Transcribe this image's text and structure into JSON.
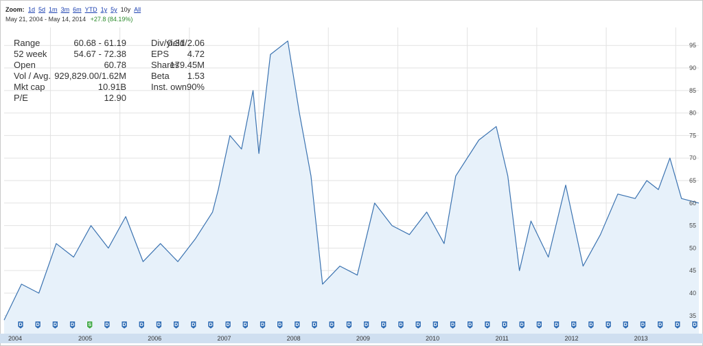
{
  "toolbar": {
    "zoom_label": "Zoom:",
    "zoom_options": [
      "1d",
      "5d",
      "1m",
      "3m",
      "6m",
      "YTD",
      "1y",
      "5y",
      "10y",
      "All"
    ],
    "active_zoom": "10y"
  },
  "range_display": {
    "dates": "May 21, 2004  -  May 14, 2014",
    "change": "+27.8 (84.19%)",
    "change_color": "#2a8a2a"
  },
  "stats": {
    "left": [
      {
        "label": "Range",
        "value": "60.68 - 61.19"
      },
      {
        "label": "52 week",
        "value": "54.67 - 72.38"
      },
      {
        "label": "Open",
        "value": "60.78"
      },
      {
        "label": "Vol / Avg.",
        "value": "929,829.00/1.62M"
      },
      {
        "label": "Mkt cap",
        "value": "10.91B"
      },
      {
        "label": "P/E",
        "value": "12.90"
      }
    ],
    "right": [
      {
        "label": "Div/yield",
        "value": "0.31/2.06"
      },
      {
        "label": "EPS",
        "value": "4.72"
      },
      {
        "label": "Shares",
        "value": "179.45M"
      },
      {
        "label": "Beta",
        "value": "1.53"
      },
      {
        "label": "Inst. own",
        "value": "90%"
      }
    ]
  },
  "colors": {
    "line": "#3a72b0",
    "fill": "#e7f1fa",
    "grid": "#e2e2e2",
    "axis_bar": "#cfdff0",
    "marker_fill": "#2f6db5",
    "split_marker_fill": "#3ea845"
  },
  "chart_data": {
    "type": "area",
    "ylim": [
      31,
      99
    ],
    "y_ticks": [
      35,
      40,
      45,
      50,
      55,
      60,
      65,
      70,
      75,
      80,
      85,
      90,
      95
    ],
    "x_tick_labels": [
      "2004",
      "2005",
      "2006",
      "2007",
      "2008",
      "2009",
      "2010",
      "2011",
      "2012",
      "2013"
    ],
    "x": [
      "2004-05",
      "2004-08",
      "2004-11",
      "2005-02",
      "2005-05",
      "2005-08",
      "2005-11",
      "2006-02",
      "2006-05",
      "2006-08",
      "2006-11",
      "2007-02",
      "2007-05",
      "2007-06",
      "2007-08",
      "2007-10",
      "2007-12",
      "2008-01",
      "2008-03",
      "2008-06",
      "2008-08",
      "2008-10",
      "2008-12",
      "2009-03",
      "2009-06",
      "2009-09",
      "2009-12",
      "2010-03",
      "2010-06",
      "2010-09",
      "2010-11",
      "2011-03",
      "2011-06",
      "2011-08",
      "2011-10",
      "2011-12",
      "2012-03",
      "2012-06",
      "2012-09",
      "2012-12",
      "2013-03",
      "2013-06",
      "2013-08",
      "2013-10",
      "2013-12",
      "2014-02",
      "2014-05"
    ],
    "series": [
      {
        "values": [
          34,
          42,
          40,
          51,
          48,
          55,
          50,
          57,
          47,
          51,
          47,
          52,
          58,
          63,
          75,
          72,
          85,
          71,
          93,
          96,
          80,
          66,
          42,
          46,
          44,
          60,
          55,
          53,
          58,
          51,
          66,
          74,
          77,
          66,
          45,
          56,
          48,
          64,
          46,
          53,
          62,
          61,
          65,
          63,
          70,
          61,
          60
        ]
      }
    ],
    "markers": [
      {
        "label": "D",
        "type": "dividend"
      },
      {
        "label": "S",
        "type": "split"
      }
    ]
  }
}
